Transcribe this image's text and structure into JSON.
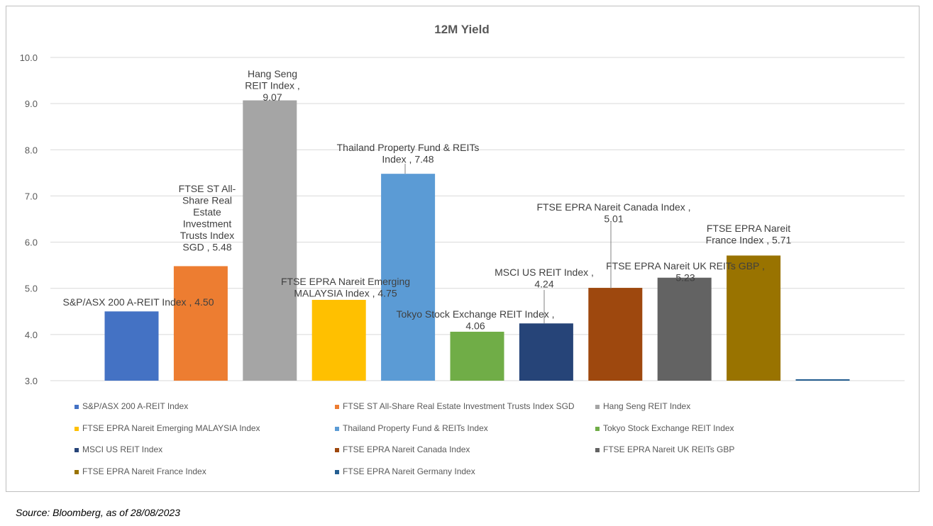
{
  "chart_data": {
    "type": "bar",
    "title": "12M Yield",
    "xlabel": "",
    "ylabel": "",
    "ylim": [
      3.0,
      10.0
    ],
    "yticks": [
      "3.0",
      "4.0",
      "5.0",
      "6.0",
      "7.0",
      "8.0",
      "9.0",
      "10.0"
    ],
    "grid": true,
    "legend_position": "bottom",
    "categories": [
      "S&P/ASX 200 A-REIT Index",
      "FTSE ST All-Share Real Estate Investment Trusts Index SGD",
      "Hang Seng REIT Index",
      "FTSE EPRA Nareit Emerging MALAYSIA Index",
      "Thailand Property Fund & REITs Index",
      "Tokyo Stock Exchange REIT Index",
      "MSCI US REIT Index",
      "FTSE EPRA Nareit Canada Index",
      "FTSE EPRA Nareit UK REITs GBP",
      "FTSE EPRA Nareit France Index",
      "FTSE EPRA Nareit Germany Index"
    ],
    "values": [
      4.5,
      5.48,
      9.07,
      4.75,
      7.48,
      4.06,
      4.24,
      5.01,
      5.23,
      5.71,
      3.0
    ],
    "colors": [
      "#4472c4",
      "#ed7d31",
      "#a5a5a5",
      "#ffc000",
      "#5b9bd5",
      "#70ad47",
      "#264478",
      "#9e480e",
      "#636363",
      "#997300",
      "#255e91"
    ],
    "data_labels": [
      [
        "S&P/ASX 200 A-REIT Index , 4.50"
      ],
      [
        "FTSE ST All-",
        "Share Real",
        "Estate",
        "Investment",
        "Trusts Index",
        "SGD , 5.48"
      ],
      [
        "Hang Seng",
        "REIT Index ,",
        "9.07"
      ],
      [
        "FTSE EPRA Nareit Emerging",
        "MALAYSIA Index , 4.75"
      ],
      [
        "Thailand Property Fund & REITs",
        "Index , 7.48"
      ],
      [
        "Tokyo Stock Exchange REIT Index ,",
        "4.06"
      ],
      [
        "MSCI US REIT Index ,",
        "4.24"
      ],
      [
        "FTSE EPRA Nareit Canada Index ,",
        "5.01"
      ],
      [
        "FTSE EPRA Nareit UK REITs GBP ,",
        "5.23"
      ],
      [
        "FTSE EPRA Nareit",
        "France Index , 5.71"
      ],
      []
    ]
  },
  "source_note": "Source: Bloomberg, as of 28/08/2023"
}
